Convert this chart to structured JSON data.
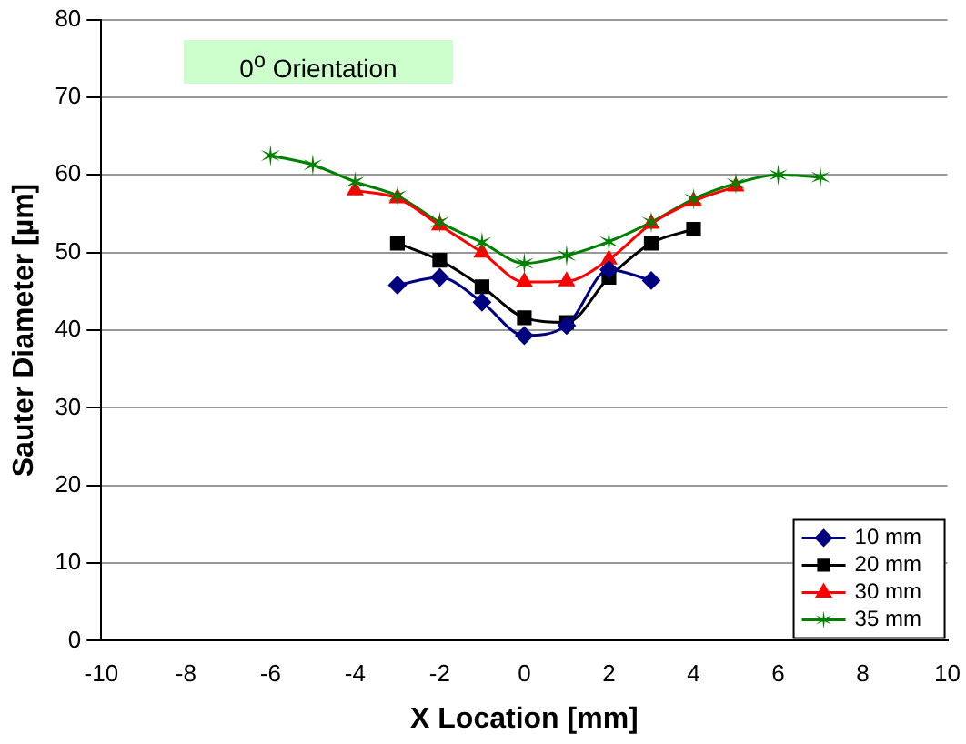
{
  "chart_data": {
    "type": "line",
    "xlabel": "X Location [mm]",
    "ylabel": "Sauter Diameter [µm]",
    "annotations": [
      "0$^{o}$ Orientation"
    ],
    "xlim": [
      -10,
      10
    ],
    "xticks": [
      -10,
      -8,
      -6,
      -4,
      -2,
      0,
      2,
      4,
      6,
      8,
      10
    ],
    "ylim": [
      0,
      80
    ],
    "yticks": [
      0,
      10,
      20,
      30,
      40,
      50,
      60,
      70,
      80
    ],
    "grid": "y",
    "legend": "bottom right",
    "series": [
      {
        "name": "10 mm",
        "color": "#000080",
        "marker": "diamond",
        "x": [
          -3,
          -2,
          -1,
          0,
          1,
          2,
          3
        ],
        "values": [
          45.8,
          46.8,
          43.6,
          39.3,
          40.6,
          47.8,
          46.4
        ]
      },
      {
        "name": "20 mm",
        "color": "#000000",
        "marker": "square",
        "x": [
          -3,
          -2,
          -1,
          0,
          1,
          2,
          3,
          4
        ],
        "values": [
          51.2,
          49.0,
          45.6,
          41.6,
          41.0,
          46.8,
          51.2,
          53.0
        ]
      },
      {
        "name": "30 mm",
        "color": "#ff0000",
        "marker": "triangle",
        "x": [
          -4,
          -3,
          -2,
          -1,
          0,
          1,
          2,
          3,
          4,
          5
        ],
        "values": [
          58.0,
          57.0,
          53.5,
          50.0,
          46.2,
          46.3,
          49.1,
          53.7,
          56.6,
          58.5
        ]
      },
      {
        "name": "35 mm",
        "color": "#008000",
        "marker": "cross",
        "x": [
          -6,
          -5,
          -4,
          -3,
          -2,
          -1,
          0,
          1,
          2,
          3,
          4,
          5,
          6,
          7
        ],
        "values": [
          62.5,
          61.3,
          59.1,
          57.3,
          53.9,
          51.3,
          48.6,
          49.6,
          51.4,
          53.9,
          56.9,
          58.9,
          60.0,
          59.7
        ]
      }
    ]
  }
}
